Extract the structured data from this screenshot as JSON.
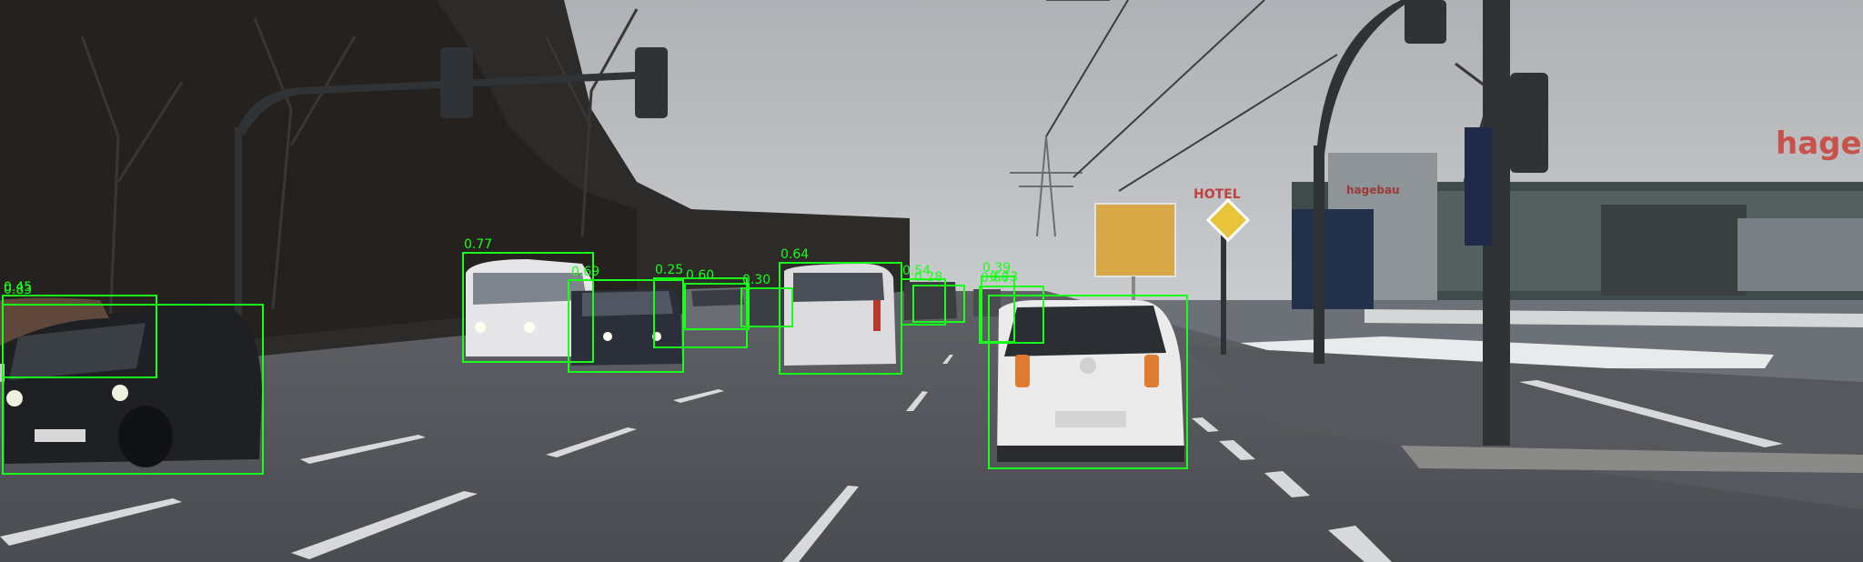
{
  "detections": [
    {
      "score": "0.45",
      "class": "car"
    },
    {
      "score": "0.83",
      "class": "car"
    },
    {
      "score": "0.77",
      "class": "van"
    },
    {
      "score": "0.69",
      "class": "car"
    },
    {
      "score": "0.25",
      "class": "car"
    },
    {
      "score": "0.60",
      "class": "car"
    },
    {
      "score": "0.30",
      "class": "car"
    },
    {
      "score": "0.64",
      "class": "van"
    },
    {
      "score": "0.54",
      "class": "car"
    },
    {
      "score": "0.28",
      "class": "car"
    },
    {
      "score": "0.39",
      "class": "car"
    },
    {
      "score": "0.66",
      "class": "car"
    },
    {
      "score": "0.73",
      "class": "car"
    }
  ],
  "box_color": "#1aff1a",
  "signage": {
    "store_sign": "hage",
    "hotel_sign": "HOTEL",
    "store_logo": "hagebau"
  }
}
